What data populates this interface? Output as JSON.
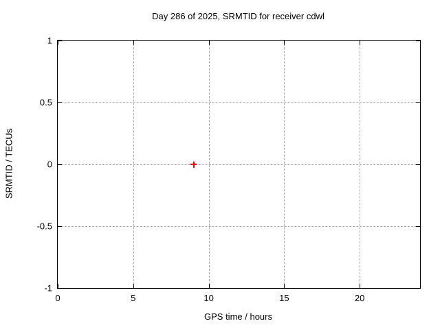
{
  "chart_data": {
    "type": "scatter",
    "title": "Day 286 of 2025, SRMTID for receiver cdwl",
    "xlabel": "GPS time / hours",
    "ylabel": "SRMTID / TECUs",
    "xlim": [
      0,
      24
    ],
    "ylim": [
      -1,
      1
    ],
    "xticks": [
      0,
      5,
      10,
      15,
      20
    ],
    "xtick_labels": [
      "0",
      "5",
      "10",
      "15",
      "20"
    ],
    "yticks": [
      -1,
      -0.5,
      0,
      0.5,
      1
    ],
    "ytick_labels": [
      "-1",
      "-0.5",
      "0",
      "0.5",
      "1"
    ],
    "grid": true,
    "legend": "none",
    "series": [
      {
        "name": "SRMTID",
        "marker": "plus",
        "color": "#ff0000",
        "points": [
          {
            "x": 9,
            "y": 0
          }
        ]
      }
    ],
    "colors": {
      "background": "#ffffff",
      "border": "#000000",
      "grid": "#a8a8a8",
      "text": "#000000",
      "marker": "#ff0000"
    }
  }
}
